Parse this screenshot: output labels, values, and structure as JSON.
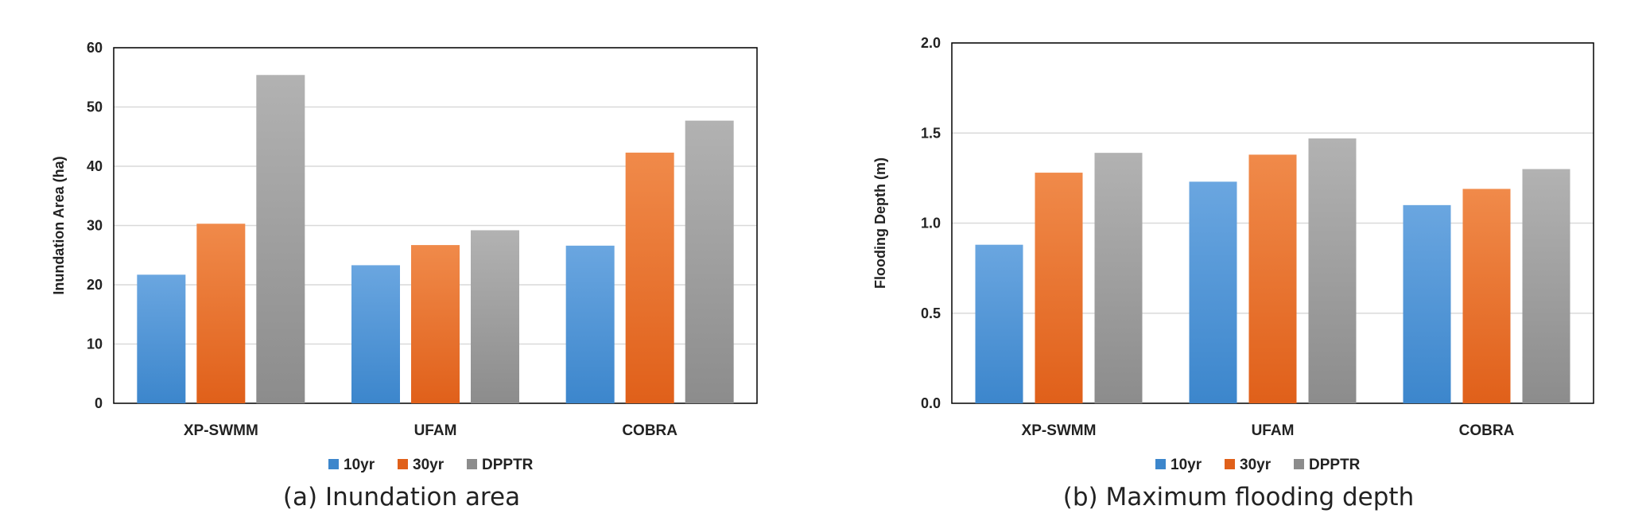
{
  "colors": {
    "10yr": [
      "#6aa6e0",
      "#3c86cc"
    ],
    "30yr": [
      "#f08a4a",
      "#e0601a"
    ],
    "DPPTR": [
      "#b2b2b2",
      "#8c8c8c"
    ],
    "grid": "#d9d9d9",
    "axis": "#000000"
  },
  "chart_data": [
    {
      "type": "bar",
      "categories": [
        "XP-SWMM",
        "UFAM",
        "COBRA"
      ],
      "series": [
        {
          "name": "10yr",
          "values": [
            21.7,
            23.3,
            26.6
          ]
        },
        {
          "name": "30yr",
          "values": [
            30.3,
            26.7,
            42.3
          ]
        },
        {
          "name": "DPPTR",
          "values": [
            55.4,
            29.2,
            47.7
          ]
        }
      ],
      "ylabel": "Inundation Area (ha)",
      "ylim": [
        0,
        60
      ],
      "yticks": [
        "0",
        "10",
        "20",
        "30",
        "40",
        "50",
        "60"
      ],
      "grid": true,
      "legend": "bottom-center",
      "caption": "(a) Inundation area"
    },
    {
      "type": "bar",
      "categories": [
        "XP-SWMM",
        "UFAM",
        "COBRA"
      ],
      "series": [
        {
          "name": "10yr",
          "values": [
            0.88,
            1.23,
            1.1
          ]
        },
        {
          "name": "30yr",
          "values": [
            1.28,
            1.38,
            1.19
          ]
        },
        {
          "name": "DPPTR",
          "values": [
            1.39,
            1.47,
            1.3
          ]
        }
      ],
      "ylabel": "Flooding  Depth (m)",
      "ylim": [
        0,
        2.0
      ],
      "yticks": [
        "0.0",
        "0.5",
        "1.0",
        "1.5",
        "2.0"
      ],
      "grid": true,
      "legend": "bottom-center",
      "caption": "(b) Maximum flooding depth"
    }
  ]
}
